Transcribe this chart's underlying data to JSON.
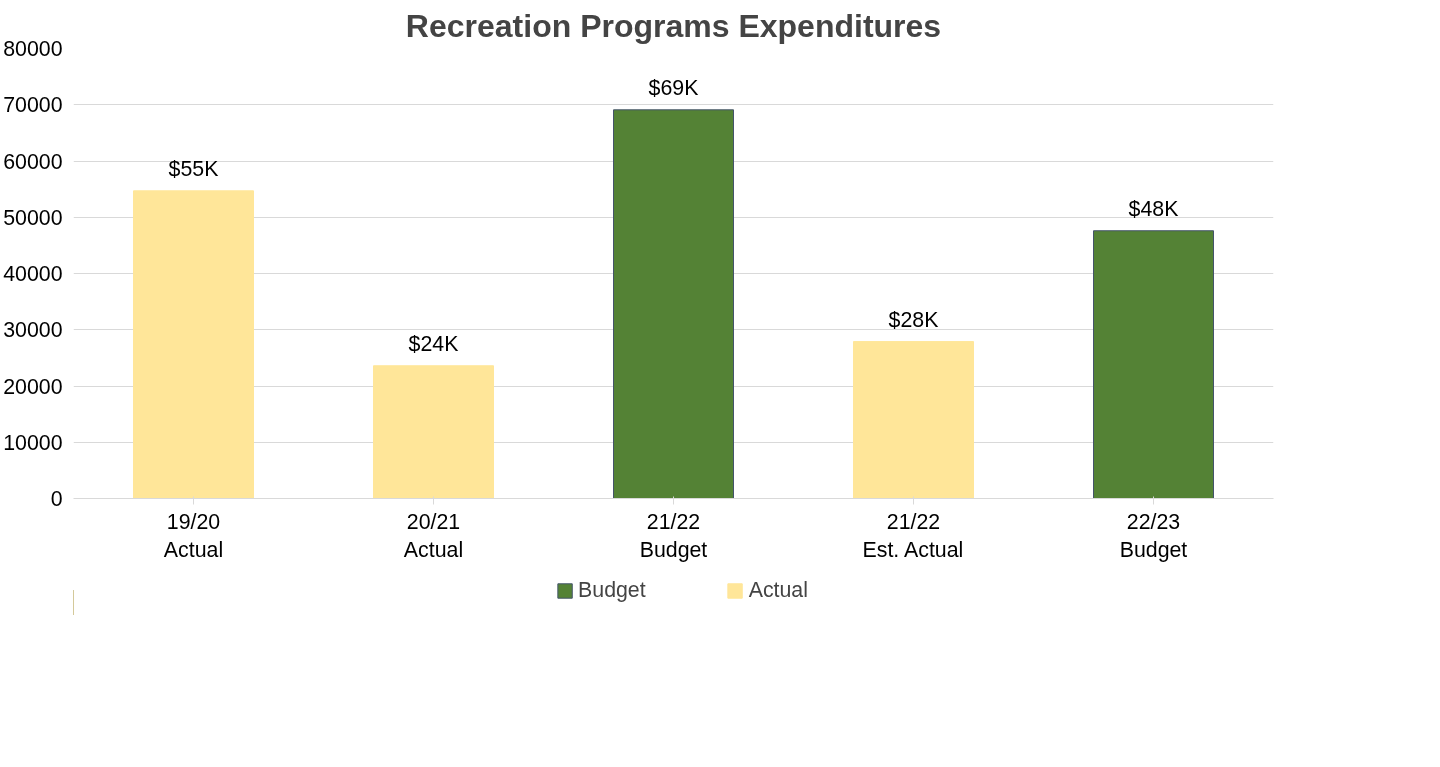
{
  "chart_data": {
    "type": "bar",
    "title": "Recreation Programs Expenditures",
    "categories": [
      "19/20\nActual",
      "20/21\nActual",
      "21/22\nBudget",
      "21/22\nEst. Actual",
      "22/23\nBudget"
    ],
    "series": [
      {
        "name": "Budget",
        "color": "#548235",
        "values": [
          null,
          null,
          69100,
          null,
          47600
        ],
        "value_labels": [
          null,
          null,
          "$69K",
          null,
          "$48K"
        ]
      },
      {
        "name": "Actual",
        "color": "#ffe699",
        "values": [
          54700,
          23600,
          null,
          27900,
          null
        ],
        "value_labels": [
          "$55K",
          "$24K",
          null,
          "$28K",
          null
        ]
      }
    ],
    "ylim": [
      0,
      80000
    ],
    "yticks": [
      0,
      10000,
      20000,
      30000,
      40000,
      50000,
      60000,
      70000,
      80000
    ],
    "grid": "y",
    "legend": "bottom"
  }
}
